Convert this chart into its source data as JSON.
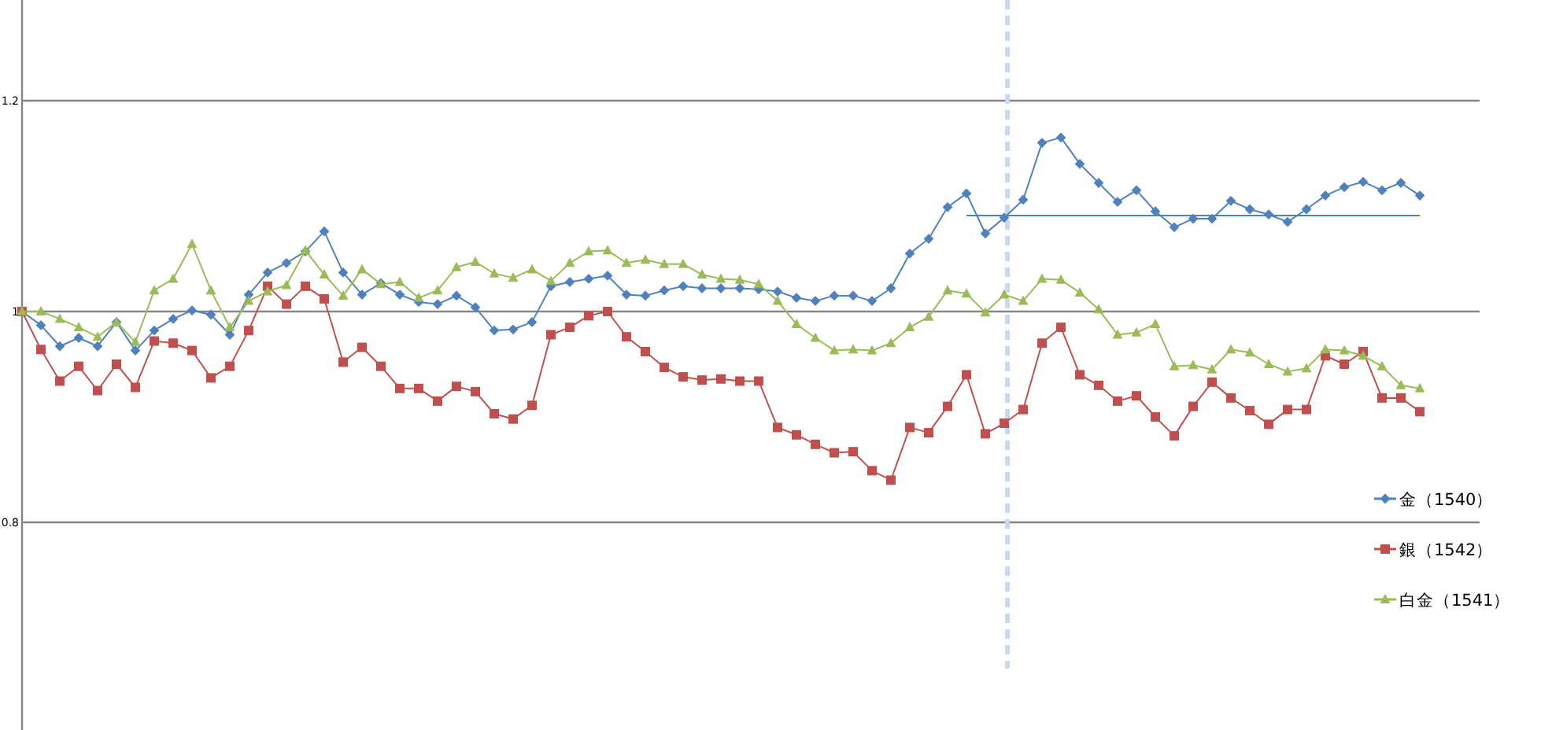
{
  "chart_data": {
    "type": "line",
    "ylim": [
      0.6,
      1.3
    ],
    "yticks": [
      0.8,
      1,
      1.2
    ],
    "tick_labels": "y",
    "grid": "y",
    "legend": "right",
    "categories": [
      null,
      null,
      null,
      null,
      null,
      null,
      null,
      null,
      null,
      null,
      null,
      null,
      null,
      null,
      null,
      null,
      null,
      null,
      null,
      null,
      null,
      null,
      null,
      null,
      null,
      null,
      null,
      null,
      null,
      null,
      null,
      null,
      null,
      null,
      null,
      null,
      null,
      null,
      null,
      null,
      null,
      null,
      null,
      null,
      null,
      null,
      null,
      null,
      null,
      null,
      null,
      null,
      null,
      null,
      null,
      null,
      null,
      null,
      null,
      null,
      null,
      null,
      null,
      null,
      null,
      null,
      null,
      null,
      null,
      null,
      null,
      null,
      null,
      null,
      null
    ],
    "series": [
      {
        "name": "金（1540）",
        "color": "#4f81bd",
        "marker": "diamond",
        "values": [
          1.0,
          0.987,
          0.967,
          0.975,
          0.967,
          0.99,
          0.963,
          0.982,
          0.993,
          1.001,
          0.997,
          0.978,
          1.016,
          1.037,
          1.046,
          1.057,
          1.076,
          1.037,
          1.016,
          1.027,
          1.016,
          1.009,
          1.007,
          1.015,
          1.004,
          0.982,
          0.983,
          0.99,
          1.024,
          1.028,
          1.031,
          1.034,
          1.016,
          1.015,
          1.02,
          1.024,
          1.022,
          1.022,
          1.022,
          1.021,
          1.019,
          1.013,
          1.01,
          1.015,
          1.015,
          1.01,
          1.022,
          1.055,
          1.069,
          1.099,
          1.112,
          1.074,
          1.089,
          1.106,
          1.16,
          1.165,
          1.14,
          1.122,
          1.104,
          1.115,
          1.095,
          1.08,
          1.088,
          1.088,
          1.105,
          1.097,
          1.092,
          1.085,
          1.097,
          1.11,
          1.118,
          1.123,
          1.115,
          1.122,
          1.11
        ]
      },
      {
        "name": "銀（1542）",
        "color": "#c0504d",
        "marker": "square",
        "values": [
          1.0,
          0.964,
          0.934,
          0.948,
          0.925,
          0.95,
          0.928,
          0.972,
          0.97,
          0.963,
          0.937,
          0.948,
          0.982,
          1.024,
          1.007,
          1.024,
          1.012,
          0.952,
          0.966,
          0.948,
          0.927,
          0.927,
          0.915,
          0.929,
          0.924,
          0.903,
          0.898,
          0.911,
          0.978,
          0.985,
          0.996,
          1.0,
          0.976,
          0.962,
          0.947,
          0.938,
          0.935,
          0.936,
          0.934,
          0.934,
          0.89,
          0.883,
          0.874,
          0.866,
          0.867,
          0.849,
          0.84,
          0.89,
          0.885,
          0.91,
          0.94,
          0.884,
          0.894,
          0.907,
          0.97,
          0.985,
          0.94,
          0.93,
          0.915,
          0.92,
          0.9,
          0.882,
          0.91,
          0.933,
          0.918,
          0.906,
          0.893,
          0.907,
          0.907,
          0.958,
          0.95,
          0.962,
          0.918,
          0.918,
          0.905
        ]
      },
      {
        "name": "白金（1541）",
        "color": "#9bbb59",
        "marker": "triangle",
        "values": [
          1.0,
          1.0,
          0.993,
          0.985,
          0.976,
          0.99,
          0.971,
          1.02,
          1.031,
          1.064,
          1.02,
          0.985,
          1.01,
          1.019,
          1.025,
          1.058,
          1.035,
          1.015,
          1.04,
          1.026,
          1.028,
          1.013,
          1.02,
          1.042,
          1.047,
          1.036,
          1.032,
          1.04,
          1.029,
          1.046,
          1.057,
          1.058,
          1.046,
          1.049,
          1.045,
          1.045,
          1.035,
          1.031,
          1.03,
          1.026,
          1.01,
          0.988,
          0.975,
          0.963,
          0.964,
          0.963,
          0.97,
          0.985,
          0.995,
          1.02,
          1.017,
          0.999,
          1.016,
          1.01,
          1.031,
          1.03,
          1.018,
          1.002,
          0.978,
          0.98,
          0.988,
          0.948,
          0.949,
          0.945,
          0.964,
          0.961,
          0.95,
          0.943,
          0.946,
          0.964,
          0.963,
          0.958,
          0.948,
          0.93,
          0.927
        ]
      },
      {
        "type": "line",
        "color": "#4f81bd",
        "marker": "none",
        "values": [
          null,
          null,
          null,
          null,
          null,
          null,
          null,
          null,
          null,
          null,
          null,
          null,
          null,
          null,
          null,
          null,
          null,
          null,
          null,
          null,
          null,
          null,
          null,
          null,
          null,
          null,
          null,
          null,
          null,
          null,
          null,
          null,
          null,
          null,
          null,
          null,
          null,
          null,
          null,
          null,
          null,
          null,
          null,
          null,
          null,
          null,
          null,
          null,
          null,
          null,
          1.091,
          1.091,
          1.091,
          1.091,
          1.091,
          1.091,
          1.091,
          1.091,
          1.091,
          1.091,
          1.091,
          1.091,
          1.091,
          1.091,
          1.091,
          1.091,
          1.091,
          1.091,
          1.091,
          1.091,
          1.091,
          1.091,
          1.091,
          1.091,
          1.091
        ]
      }
    ]
  }
}
